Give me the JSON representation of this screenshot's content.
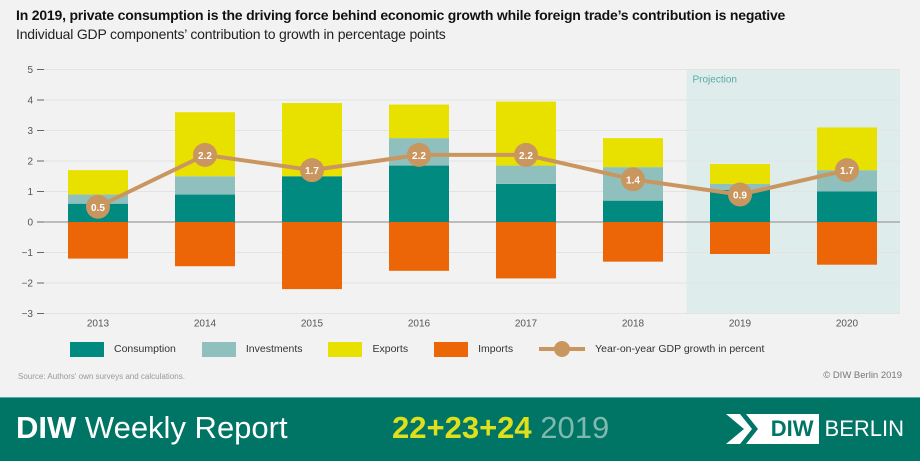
{
  "title": "In 2019, private consumption is the driving force behind economic growth while foreign trade’s contribution is negative",
  "subtitle": "Individual GDP components’ contribution to growth in percentage points",
  "chart_data": {
    "type": "bar",
    "stacked": true,
    "categories": [
      "2013",
      "2014",
      "2015",
      "2016",
      "2017",
      "2018",
      "2019",
      "2020"
    ],
    "ylim": [
      -3,
      5
    ],
    "yticks": [
      "5",
      "4",
      "3",
      "2",
      "1",
      "0",
      "−1",
      "−2",
      "−3"
    ],
    "ytick_values": [
      5,
      4,
      3,
      2,
      1,
      0,
      -1,
      -2,
      -3
    ],
    "grid": true,
    "annotation": "Projection",
    "projection_categories": [
      "2019",
      "2020"
    ],
    "series": [
      {
        "name": "Consumption",
        "color": "#008a80",
        "values": [
          0.6,
          0.9,
          1.5,
          1.85,
          1.25,
          0.7,
          1.05,
          1.0
        ]
      },
      {
        "name": "Investments",
        "color": "#8fc0be",
        "values": [
          0.3,
          0.6,
          0.0,
          0.9,
          0.6,
          1.1,
          0.2,
          0.7
        ]
      },
      {
        "name": "Exports",
        "color": "#e8e100",
        "values": [
          0.8,
          2.1,
          2.4,
          1.1,
          2.1,
          0.95,
          0.65,
          1.4
        ]
      },
      {
        "name": "Imports",
        "color": "#ec6608",
        "values": [
          -1.2,
          -1.45,
          -2.2,
          -1.6,
          -1.85,
          -1.3,
          -1.05,
          -1.4
        ]
      }
    ],
    "line": {
      "name": "Year-on-year GDP growth in percent",
      "color": "#c9965f",
      "values": [
        0.5,
        2.2,
        1.7,
        2.2,
        2.2,
        1.4,
        0.9,
        1.7
      ],
      "labels": [
        "0.5",
        "2.2",
        "1.7",
        "2.2",
        "2.2",
        "1.4",
        "0.9",
        "1.7"
      ]
    },
    "legend": "bottom"
  },
  "source": "Source: Authors' own surveys and calculations.",
  "copyright": "© DIW Berlin 2019",
  "footer": {
    "brand_bold": "DIW",
    "brand_rest": " Weekly Report",
    "issue": "22+23+24",
    "year": " 2019",
    "logo_box": "DIW",
    "logo_city": "BERLIN"
  }
}
